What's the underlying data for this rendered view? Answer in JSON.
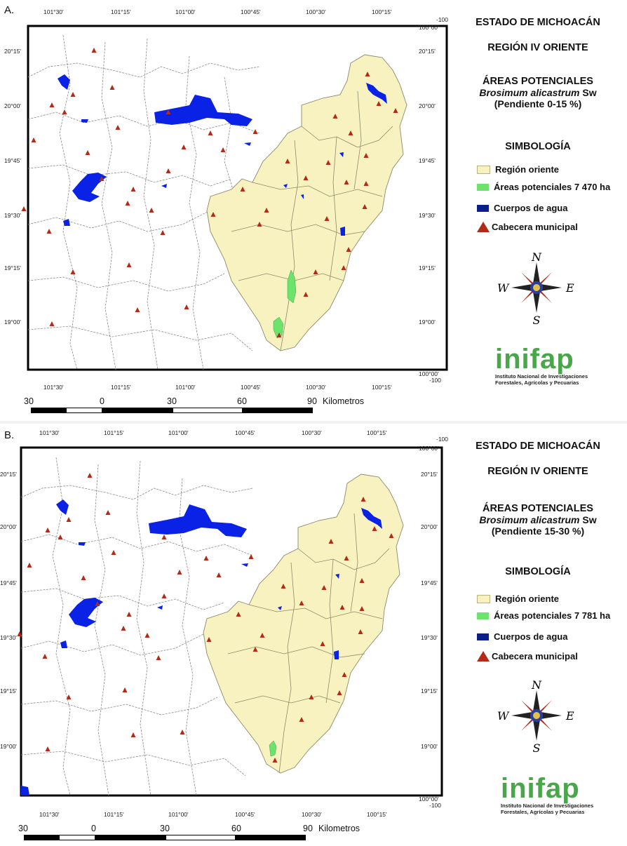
{
  "panels": [
    {
      "label": "A.",
      "title1": "ESTADO DE MICHOACÁN",
      "title2": "REGIÓN IV ORIENTE",
      "areas_title": "ÁREAS POTENCIALES",
      "species": "Brosimum alicastrum",
      "species_author": "Sw",
      "slope": "(Pendiente 0-15 %)",
      "simbologia": "SIMBOLOGÍA",
      "legend": [
        "Región oriente",
        "Áreas potenciales 7 470 ha",
        "Cuerpos de agua",
        "Cabecera municipal"
      ]
    },
    {
      "label": "B.",
      "title1": "ESTADO DE MICHOACÁN",
      "title2": "REGIÓN IV ORIENTE",
      "areas_title": "ÁREAS POTENCIALES",
      "species": "Brosimum alicastrum",
      "species_author": "Sw",
      "slope": "(Pendiente 15-30 %)",
      "simbologia": "SIMBOLOGÍA",
      "legend": [
        "Región oriente",
        "Áreas potenciales 7 781 ha",
        "Cuerpos de agua",
        "Cabecera municipal"
      ]
    }
  ],
  "coords": {
    "top_lon": [
      "101°30'",
      "101°15'",
      "101°00'",
      "100°45'",
      "100°30'",
      "100°15'"
    ],
    "bottom_lon": [
      "101°30'",
      "101°15'",
      "101°00'",
      "100°45'",
      "100°30'",
      "100°15'"
    ],
    "lat": [
      "20°15'",
      "20°00'",
      "19°45'",
      "19°30'",
      "19°15'",
      "19°00'"
    ],
    "corner_top": "-100",
    "corner_top_right": "100°00'",
    "corner_bottom": "100°00'",
    "corner_bottom_right": "-100"
  },
  "compass": {
    "n": "N",
    "s": "S",
    "e": "E",
    "w": "W"
  },
  "logo": {
    "word": "inifap",
    "line1": "Instituto Nacional de Investigaciones",
    "line2": "Forestales, Agrícolas y Pecuarias"
  },
  "scale": {
    "labels": [
      "30",
      "0",
      "30",
      "60",
      "90"
    ],
    "unit": "Kilometros"
  },
  "colors": {
    "region": "#f8f2c0",
    "potential": "#6de26d",
    "water": "#0a22e6",
    "legend_water": "#0b1f8a",
    "cabecera": "#b32a18",
    "frame": "#000000"
  }
}
